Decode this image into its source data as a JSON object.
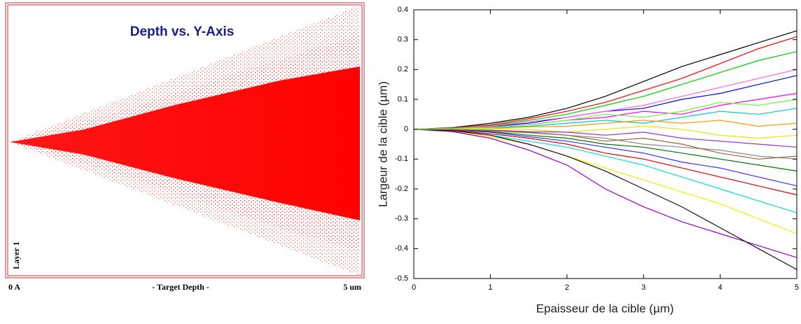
{
  "chart_data": [
    {
      "type": "srim",
      "title": "Depth vs. Y-Axis",
      "x_start_label": "0 A",
      "xlabel": "- Target Depth -",
      "x_end_label": "5 um",
      "layer_label": "Layer 1"
    },
    {
      "type": "line",
      "xlabel": "Epaisseur de la cible (µm)",
      "ylabel": "Largeur de la cible (µm)",
      "xlim": [
        0,
        5
      ],
      "xticks": [
        0,
        1,
        2,
        3,
        4,
        5
      ],
      "ylim": [
        -0.5,
        0.4
      ],
      "yticks": [
        -0.5,
        -0.4,
        -0.3,
        -0.2,
        -0.1,
        0,
        0.1,
        0.2,
        0.3,
        0.4
      ],
      "x": [
        0,
        0.5,
        1,
        1.5,
        2,
        2.5,
        3,
        3.5,
        4,
        4.5,
        5
      ],
      "series": [
        {
          "color": "#000000",
          "values": [
            0,
            0.005,
            0.02,
            0.04,
            0.07,
            0.11,
            0.16,
            0.21,
            0.25,
            0.29,
            0.33
          ]
        },
        {
          "color": "#ff0000",
          "values": [
            0,
            0.004,
            0.015,
            0.035,
            0.06,
            0.09,
            0.13,
            0.17,
            0.22,
            0.27,
            0.31
          ]
        },
        {
          "color": "#00cc00",
          "values": [
            0,
            0.003,
            0.012,
            0.03,
            0.05,
            0.08,
            0.11,
            0.15,
            0.19,
            0.23,
            0.26
          ]
        },
        {
          "color": "#0000ff",
          "values": [
            0,
            0.002,
            0.01,
            0.02,
            0.04,
            0.06,
            0.07,
            0.1,
            0.12,
            0.15,
            0.18
          ]
        },
        {
          "color": "#ff00ff",
          "values": [
            0,
            0.002,
            0.008,
            0.015,
            0.03,
            0.04,
            0.06,
            0.05,
            0.08,
            0.1,
            0.12
          ]
        },
        {
          "color": "#00cccc",
          "values": [
            0,
            0.001,
            0.005,
            0.01,
            0.02,
            0.03,
            0.02,
            0.04,
            0.06,
            0.05,
            0.07
          ]
        },
        {
          "color": "#ff9900",
          "values": [
            0,
            0.001,
            0.003,
            0.008,
            0.01,
            0.02,
            0.03,
            0.02,
            0.03,
            0.01,
            0.02
          ]
        },
        {
          "color": "#e6e600",
          "values": [
            0,
            0.001,
            0.002,
            0,
            -0.01,
            0,
            0.01,
            0,
            -0.02,
            -0.03,
            -0.02
          ]
        },
        {
          "color": "#9933cc",
          "values": [
            0,
            -0.001,
            -0.003,
            -0.008,
            -0.01,
            -0.02,
            -0.01,
            -0.03,
            -0.04,
            -0.05,
            -0.06
          ]
        },
        {
          "color": "#888888",
          "values": [
            0,
            -0.002,
            -0.006,
            -0.012,
            -0.02,
            -0.03,
            -0.05,
            -0.06,
            -0.07,
            -0.09,
            -0.1
          ]
        },
        {
          "color": "#007700",
          "values": [
            0,
            -0.002,
            -0.008,
            -0.02,
            -0.03,
            -0.05,
            -0.06,
            -0.08,
            -0.1,
            -0.12,
            -0.14
          ]
        },
        {
          "color": "#3333ff",
          "values": [
            0,
            -0.003,
            -0.01,
            -0.025,
            -0.04,
            -0.06,
            -0.08,
            -0.11,
            -0.13,
            -0.16,
            -0.19
          ]
        },
        {
          "color": "#dd0000",
          "values": [
            0,
            -0.004,
            -0.015,
            -0.03,
            -0.05,
            -0.08,
            -0.1,
            -0.13,
            -0.16,
            -0.19,
            -0.22
          ]
        },
        {
          "color": "#00dddd",
          "values": [
            0,
            -0.005,
            -0.02,
            -0.04,
            -0.06,
            -0.09,
            -0.12,
            -0.16,
            -0.2,
            -0.24,
            -0.28
          ]
        },
        {
          "color": "#eeee00",
          "values": [
            0,
            -0.006,
            -0.025,
            -0.05,
            -0.09,
            -0.13,
            -0.17,
            -0.21,
            -0.25,
            -0.3,
            -0.35
          ]
        },
        {
          "color": "#9900cc",
          "values": [
            0,
            -0.008,
            -0.03,
            -0.07,
            -0.12,
            -0.2,
            -0.26,
            -0.31,
            -0.35,
            -0.39,
            -0.43
          ]
        },
        {
          "color": "#111111",
          "values": [
            0,
            -0.005,
            -0.02,
            -0.05,
            -0.09,
            -0.14,
            -0.2,
            -0.26,
            -0.33,
            -0.4,
            -0.47
          ]
        },
        {
          "color": "#ff66cc",
          "values": [
            0,
            0.003,
            0.01,
            0.025,
            0.04,
            0.06,
            0.08,
            0.11,
            0.14,
            0.17,
            0.2
          ]
        },
        {
          "color": "#996633",
          "values": [
            0,
            -0.001,
            -0.004,
            -0.01,
            -0.02,
            -0.04,
            -0.03,
            -0.05,
            -0.08,
            -0.1,
            -0.09
          ]
        },
        {
          "color": "#66ff33",
          "values": [
            0,
            0.002,
            0.006,
            0.015,
            0.03,
            0.05,
            0.04,
            0.06,
            0.09,
            0.08,
            0.1
          ]
        }
      ]
    }
  ]
}
